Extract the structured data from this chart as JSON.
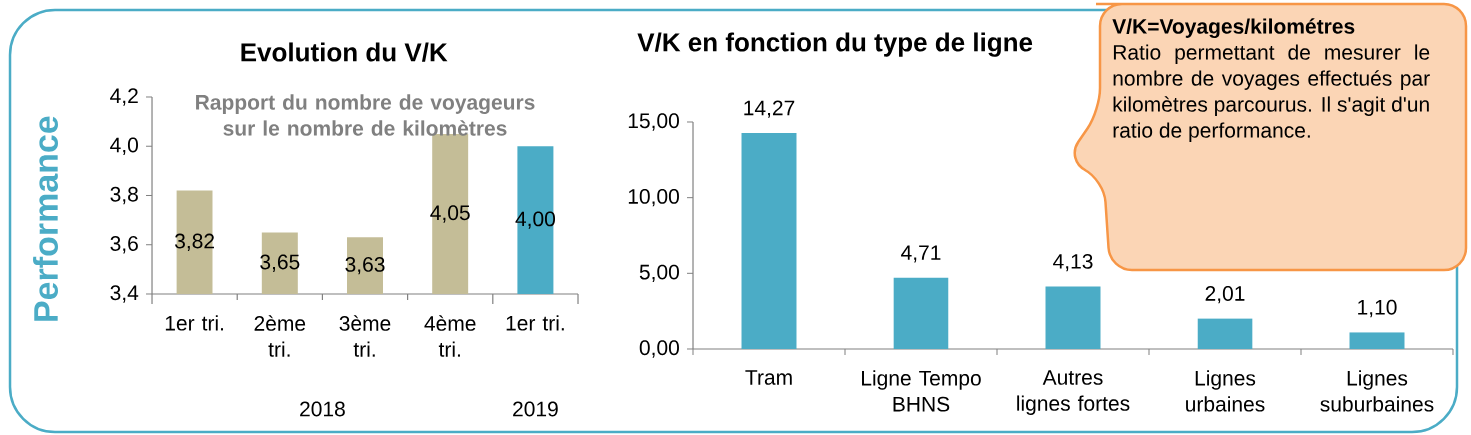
{
  "chart_data": [
    {
      "type": "bar",
      "title": "Evolution du V/K",
      "subtitle": "Rapport  du nombre de voyageurs sur le nombre de kilomètres",
      "ylabel": "Performance",
      "categories": [
        "1er tri.",
        "2ème tri.",
        "3ème tri.",
        "4ème tri.",
        "1er tri."
      ],
      "values": [
        3.82,
        3.65,
        3.63,
        4.05,
        4.0
      ],
      "colors": [
        "#c4bd97",
        "#c4bd97",
        "#c4bd97",
        "#c4bd97",
        "#4bacc6"
      ],
      "value_labels": [
        "3,82",
        "3,65",
        "3,63",
        "4,05",
        "4,00"
      ],
      "ylim": [
        3.4,
        4.2
      ],
      "yticks": [
        {
          "value": 3.4,
          "label": "3,4"
        },
        {
          "value": 3.6,
          "label": "3,6"
        },
        {
          "value": 3.8,
          "label": "3,8"
        },
        {
          "value": 4.0,
          "label": "4,0"
        },
        {
          "value": 4.2,
          "label": "4,2"
        }
      ],
      "annotations": [
        "2018",
        "2019"
      ]
    },
    {
      "type": "bar",
      "title": "V/K en fonction du type de ligne",
      "categories": [
        "Tram",
        "Ligne Tempo BHNS",
        "Autres lignes fortes",
        "Lignes urbaines",
        "Lignes suburbaines"
      ],
      "values": [
        14.27,
        4.71,
        4.13,
        2.01,
        1.1
      ],
      "color": "#4bacc6",
      "value_labels": [
        "14,27",
        "4,71",
        "4,13",
        "2,01",
        "1,10"
      ],
      "ylim": [
        0,
        15
      ],
      "yticks": [
        {
          "value": 0,
          "label": "0,00"
        },
        {
          "value": 5,
          "label": "5,00"
        },
        {
          "value": 10,
          "label": "10,00"
        },
        {
          "value": 15,
          "label": "15,00"
        }
      ]
    },
    {
      "type": "other",
      "title": "V/K=Voyages/kilométres",
      "annotations": [
        "Ratio permettant de mesurer le nombre de voyages effectués par kilomètres parcourus. Il s'agit d'un ratio de performance."
      ]
    }
  ]
}
